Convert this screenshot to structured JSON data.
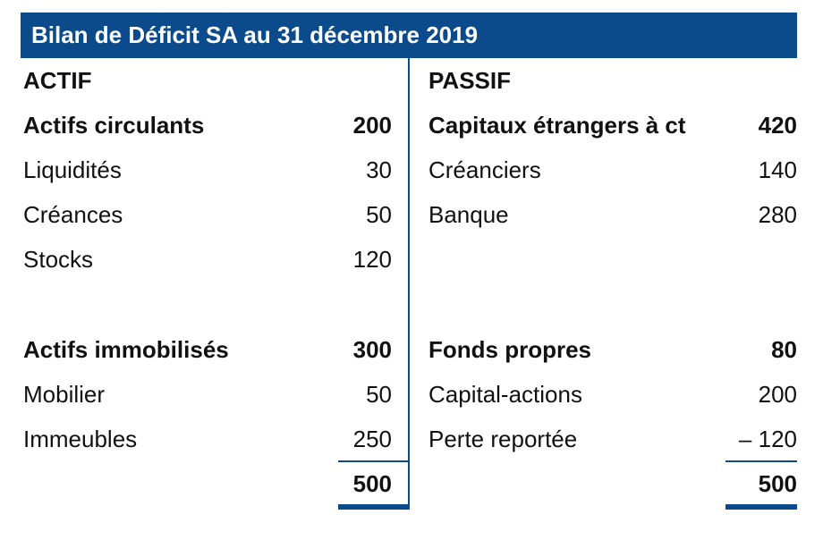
{
  "title": "Bilan de Déficit SA au 31 décembre 2019",
  "actif": {
    "heading": "ACTIF",
    "rows": [
      {
        "label": "Actifs circulants",
        "value": "200"
      },
      {
        "label": "Liquidités",
        "value": "30"
      },
      {
        "label": "Créances",
        "value": "50"
      },
      {
        "label": "Stocks",
        "value": "120"
      },
      {
        "label": "Actifs immobilisés",
        "value": "300"
      },
      {
        "label": "Mobilier",
        "value": "50"
      },
      {
        "label": "Immeubles",
        "value": "250"
      }
    ],
    "total": "500"
  },
  "passif": {
    "heading": "PASSIF",
    "rows": [
      {
        "label": "Capitaux étrangers à ct",
        "value": "420"
      },
      {
        "label": "Créanciers",
        "value": "140"
      },
      {
        "label": "Banque",
        "value": "280"
      },
      {
        "label": "Fonds propres",
        "value": "80"
      },
      {
        "label": "Capital-actions",
        "value": "200"
      },
      {
        "label": "Perte reportée",
        "value": "– 120"
      }
    ],
    "total": "500"
  },
  "colors": {
    "accent": "#0b4a8b",
    "text": "#111111",
    "background": "#ffffff"
  }
}
